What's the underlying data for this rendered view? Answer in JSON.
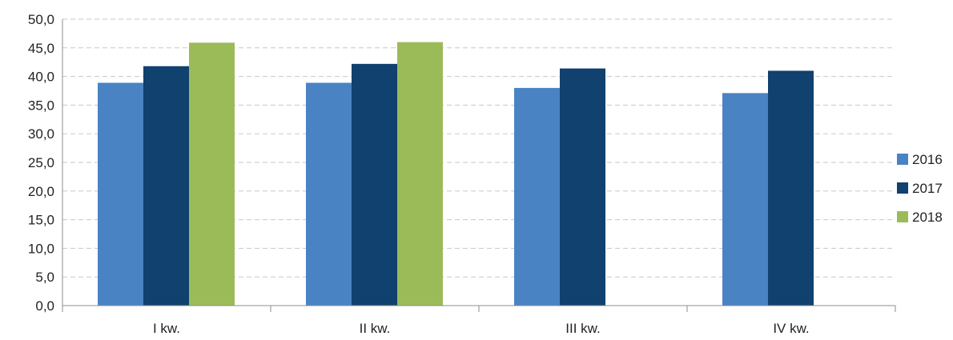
{
  "chart_data": {
    "type": "bar",
    "categories": [
      "I kw.",
      "II kw.",
      "III kw.",
      "IV kw."
    ],
    "series": [
      {
        "name": "2016",
        "color": "#4a83c4",
        "values": [
          38.9,
          38.9,
          38.0,
          37.1
        ]
      },
      {
        "name": "2017",
        "color": "#10416f",
        "values": [
          41.8,
          42.2,
          41.4,
          41.0
        ]
      },
      {
        "name": "2018",
        "color": "#9bbb59",
        "values": [
          45.9,
          46.0,
          null,
          null
        ]
      }
    ],
    "ylim": [
      0,
      50
    ],
    "ytick_step": 5,
    "ytick_labels": [
      "0,0",
      "5,0",
      "10,0",
      "15,0",
      "20,0",
      "25,0",
      "30,0",
      "35,0",
      "40,0",
      "45,0",
      "50,0"
    ],
    "title": "",
    "xlabel": "",
    "ylabel": "",
    "grid": true,
    "legend_position": "right"
  }
}
